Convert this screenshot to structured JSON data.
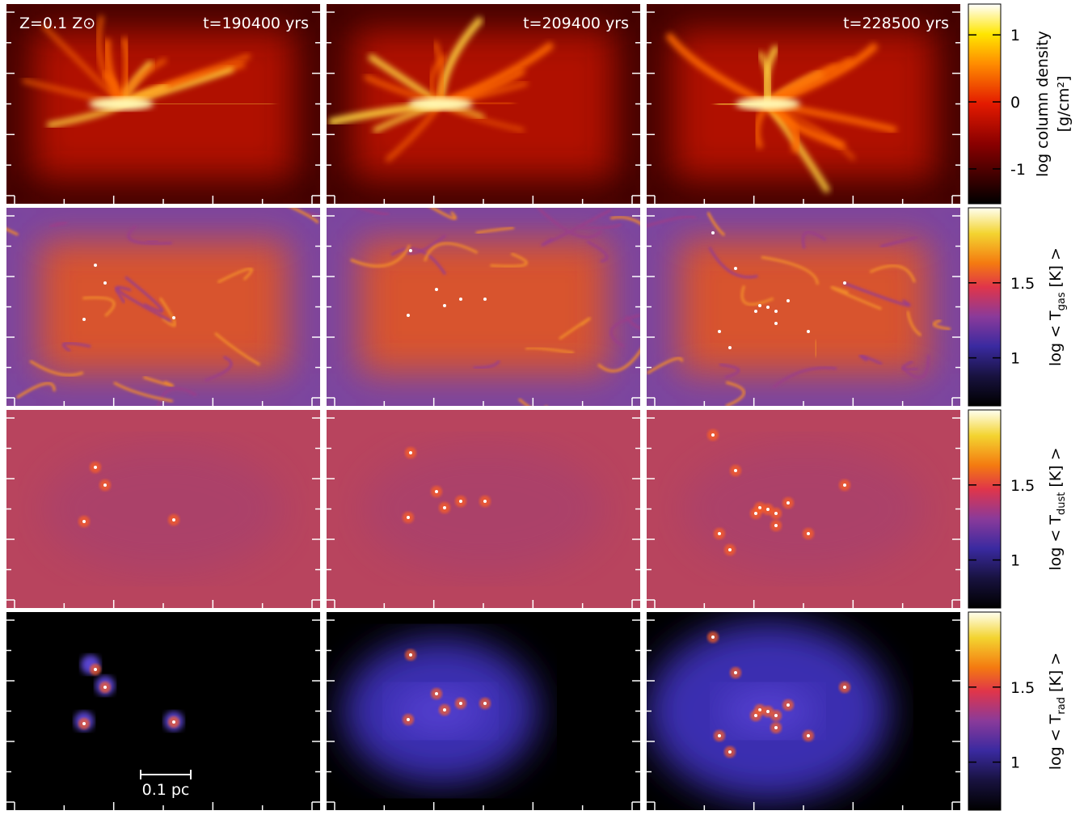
{
  "panels": {
    "metallicity_label": "Z=0.1 Z⊙",
    "time_labels": [
      "t=190400 yrs",
      "t=209400 yrs",
      "t=228500 yrs"
    ],
    "scale_bar": "0.1 pc"
  },
  "colorbars": [
    {
      "label_lines": [
        "log column density",
        "[g/cm²]"
      ],
      "lim": [
        -1.52,
        1.46
      ],
      "ticks": [
        1,
        0,
        -1
      ]
    },
    {
      "label_prefix": "log < T",
      "label_sub": "gas",
      "label_suffix": " [K] >",
      "lim": [
        0.68,
        2.0
      ],
      "ticks": [
        1.5,
        1
      ]
    },
    {
      "label_prefix": "log < T",
      "label_sub": "dust",
      "label_suffix": " [K] >",
      "lim": [
        0.68,
        2.0
      ],
      "ticks": [
        1.5,
        1
      ]
    },
    {
      "label_prefix": "log < T",
      "label_sub": "rad",
      "label_suffix": " [K] >",
      "lim": [
        0.68,
        2.0
      ],
      "ticks": [
        1.5,
        1
      ]
    }
  ]
}
